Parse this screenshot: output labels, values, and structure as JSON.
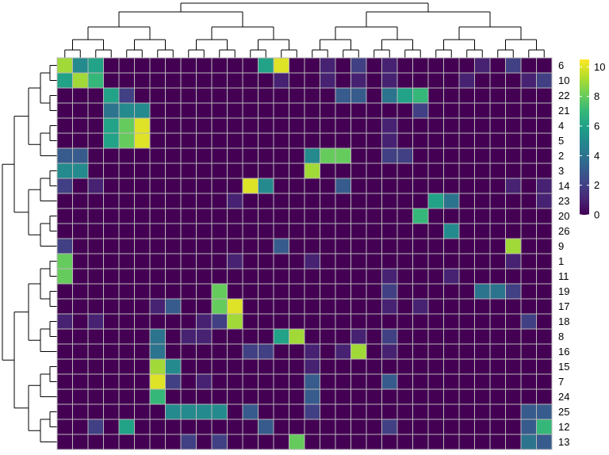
{
  "chart_data": {
    "type": "heatmap",
    "title": "",
    "xlabel": "",
    "ylabel": "",
    "rows": [
      "6",
      "10",
      "22",
      "21",
      "4",
      "5",
      "2",
      "3",
      "14",
      "23",
      "20",
      "26",
      "9",
      "1",
      "11",
      "19",
      "17",
      "18",
      "8",
      "16",
      "15",
      "7",
      "24",
      "25",
      "12",
      "13"
    ],
    "n_columns": 32,
    "cells": [
      [
        9,
        5,
        6,
        0,
        0,
        0,
        0,
        0,
        0,
        0,
        0,
        0,
        0,
        6,
        10,
        0,
        0,
        1,
        0,
        2,
        0,
        1,
        0,
        0,
        0,
        0,
        0,
        1,
        0,
        2,
        0,
        0
      ],
      [
        6,
        9,
        7,
        0,
        0,
        0,
        0,
        0,
        0,
        0,
        0,
        0,
        0,
        0,
        1,
        0,
        0,
        1,
        0,
        1,
        0,
        1,
        0,
        0,
        0,
        0,
        1,
        0,
        0,
        0,
        1,
        2
      ],
      [
        0,
        0,
        0,
        6,
        2,
        0,
        0,
        0,
        0,
        0,
        0,
        0,
        0,
        0,
        0,
        0,
        0,
        0,
        3,
        3,
        0,
        4,
        6,
        7,
        0,
        0,
        0,
        0,
        0,
        0,
        0,
        0
      ],
      [
        0,
        0,
        0,
        4,
        5,
        5,
        0,
        0,
        0,
        0,
        0,
        0,
        0,
        0,
        0,
        0,
        0,
        0,
        0,
        0,
        0,
        0,
        0,
        2,
        0,
        0,
        0,
        0,
        0,
        0,
        0,
        0
      ],
      [
        0,
        0,
        0,
        6,
        8,
        10,
        0,
        0,
        0,
        0,
        0,
        0,
        0,
        0,
        0,
        0,
        0,
        0,
        0,
        0,
        0,
        1,
        0,
        0,
        0,
        0,
        0,
        0,
        0,
        0,
        0,
        0
      ],
      [
        0,
        0,
        0,
        6,
        8,
        10,
        0,
        0,
        0,
        0,
        0,
        0,
        0,
        0,
        0,
        0,
        0,
        0,
        0,
        0,
        0,
        1,
        0,
        0,
        0,
        0,
        0,
        0,
        0,
        0,
        0,
        0
      ],
      [
        3,
        3,
        0,
        0,
        0,
        0,
        0,
        0,
        0,
        0,
        0,
        0,
        0,
        0,
        0,
        0,
        5,
        8,
        8,
        0,
        0,
        2,
        2,
        0,
        0,
        0,
        0,
        0,
        0,
        0,
        0,
        0
      ],
      [
        5,
        5,
        0,
        0,
        0,
        0,
        0,
        0,
        0,
        0,
        0,
        0,
        0,
        0,
        0,
        0,
        9,
        0,
        0,
        0,
        0,
        0,
        0,
        0,
        0,
        0,
        0,
        0,
        0,
        0,
        0,
        0
      ],
      [
        2,
        0,
        1,
        0,
        0,
        0,
        0,
        0,
        0,
        0,
        0,
        0,
        10,
        5,
        0,
        0,
        0,
        0,
        3,
        0,
        0,
        0,
        0,
        0,
        0,
        0,
        0,
        0,
        0,
        1,
        0,
        1
      ],
      [
        0,
        0,
        0,
        0,
        0,
        0,
        0,
        0,
        0,
        0,
        0,
        1,
        0,
        0,
        0,
        0,
        0,
        0,
        0,
        0,
        0,
        0,
        0,
        0,
        6,
        4,
        0,
        0,
        0,
        0,
        0,
        1
      ],
      [
        0,
        0,
        0,
        0,
        0,
        0,
        0,
        0,
        0,
        0,
        0,
        0,
        0,
        0,
        0,
        0,
        0,
        0,
        0,
        0,
        0,
        0,
        0,
        7,
        0,
        0,
        0,
        0,
        0,
        0,
        0,
        0
      ],
      [
        0,
        0,
        0,
        0,
        0,
        0,
        0,
        0,
        0,
        0,
        0,
        0,
        0,
        0,
        0,
        0,
        0,
        0,
        0,
        0,
        0,
        0,
        0,
        0,
        0,
        5,
        0,
        0,
        0,
        0,
        0,
        0
      ],
      [
        2,
        0,
        0,
        0,
        0,
        0,
        0,
        0,
        0,
        0,
        0,
        0,
        0,
        0,
        3,
        0,
        0,
        0,
        0,
        0,
        0,
        0,
        0,
        0,
        0,
        0,
        0,
        0,
        0,
        9,
        0,
        0
      ],
      [
        8,
        0,
        0,
        0,
        0,
        0,
        0,
        0,
        0,
        0,
        0,
        1,
        0,
        0,
        0,
        0,
        1,
        0,
        0,
        0,
        0,
        0,
        0,
        0,
        0,
        0,
        0,
        0,
        0,
        1,
        0,
        0
      ],
      [
        8,
        0,
        0,
        0,
        0,
        0,
        0,
        0,
        0,
        0,
        0,
        0,
        0,
        0,
        0,
        0,
        0,
        0,
        0,
        0,
        0,
        1,
        0,
        0,
        0,
        1,
        0,
        0,
        0,
        0,
        0,
        0
      ],
      [
        0,
        0,
        0,
        0,
        0,
        0,
        0,
        0,
        0,
        0,
        8,
        0,
        0,
        0,
        0,
        0,
        0,
        0,
        0,
        0,
        0,
        2,
        0,
        0,
        0,
        0,
        0,
        4,
        4,
        2,
        0,
        0
      ],
      [
        0,
        0,
        0,
        0,
        0,
        0,
        1,
        3,
        0,
        0,
        8,
        10,
        0,
        0,
        0,
        0,
        0,
        0,
        0,
        0,
        0,
        1,
        0,
        1,
        0,
        0,
        0,
        0,
        0,
        0,
        0,
        0
      ],
      [
        1,
        0,
        1,
        0,
        0,
        0,
        0,
        0,
        0,
        1,
        2,
        9,
        0,
        0,
        0,
        0,
        0,
        0,
        0,
        0,
        0,
        0,
        0,
        0,
        0,
        0,
        0,
        0,
        0,
        0,
        2,
        0
      ],
      [
        0,
        0,
        0,
        0,
        0,
        0,
        4,
        0,
        1,
        1,
        0,
        0,
        0,
        0,
        6,
        9,
        0,
        0,
        0,
        1,
        0,
        2,
        0,
        0,
        0,
        0,
        0,
        0,
        0,
        0,
        0,
        0
      ],
      [
        0,
        0,
        0,
        0,
        0,
        0,
        4,
        0,
        0,
        0,
        0,
        0,
        2,
        2,
        0,
        0,
        1,
        0,
        1,
        9,
        0,
        1,
        0,
        0,
        0,
        0,
        0,
        0,
        0,
        0,
        0,
        0
      ],
      [
        0,
        0,
        0,
        0,
        0,
        0,
        9,
        5,
        0,
        0,
        0,
        0,
        0,
        0,
        0,
        0,
        1,
        0,
        0,
        0,
        0,
        0,
        0,
        0,
        0,
        0,
        0,
        0,
        0,
        0,
        0,
        0
      ],
      [
        0,
        0,
        0,
        0,
        0,
        0,
        10,
        2,
        0,
        1,
        0,
        0,
        0,
        0,
        0,
        0,
        3,
        0,
        0,
        0,
        0,
        3,
        0,
        0,
        0,
        0,
        0,
        0,
        0,
        0,
        0,
        0
      ],
      [
        0,
        0,
        0,
        0,
        0,
        0,
        7,
        0,
        0,
        0,
        0,
        0,
        0,
        0,
        0,
        0,
        3,
        0,
        0,
        0,
        0,
        0,
        0,
        0,
        0,
        0,
        0,
        0,
        0,
        0,
        0,
        0
      ],
      [
        0,
        0,
        0,
        0,
        0,
        0,
        0,
        5,
        5,
        5,
        5,
        0,
        3,
        0,
        0,
        0,
        2,
        0,
        0,
        0,
        0,
        0,
        0,
        0,
        0,
        0,
        0,
        0,
        0,
        0,
        3,
        3
      ],
      [
        0,
        0,
        2,
        0,
        6,
        0,
        0,
        0,
        0,
        0,
        0,
        0,
        0,
        3,
        0,
        0,
        0,
        0,
        0,
        0,
        0,
        2,
        0,
        0,
        0,
        0,
        0,
        0,
        0,
        0,
        3,
        7
      ],
      [
        0,
        0,
        0,
        0,
        0,
        0,
        0,
        0,
        2,
        0,
        2,
        0,
        0,
        0,
        0,
        8,
        0,
        0,
        0,
        0,
        0,
        0,
        0,
        0,
        0,
        0,
        0,
        0,
        0,
        0,
        4,
        3
      ]
    ],
    "legend": {
      "position": "right",
      "min": 0,
      "max": 10.5,
      "ticks": [
        "0",
        "2",
        "4",
        "6",
        "8",
        "10"
      ],
      "colorscale": [
        "#440154",
        "#482878",
        "#3e4989",
        "#31688e",
        "#26828e",
        "#1f9e89",
        "#35b779",
        "#6ece58",
        "#b5de2b",
        "#fde725"
      ]
    },
    "grid_color": "#b9b9b9",
    "dendrograms": {
      "top": true,
      "left": true
    }
  }
}
